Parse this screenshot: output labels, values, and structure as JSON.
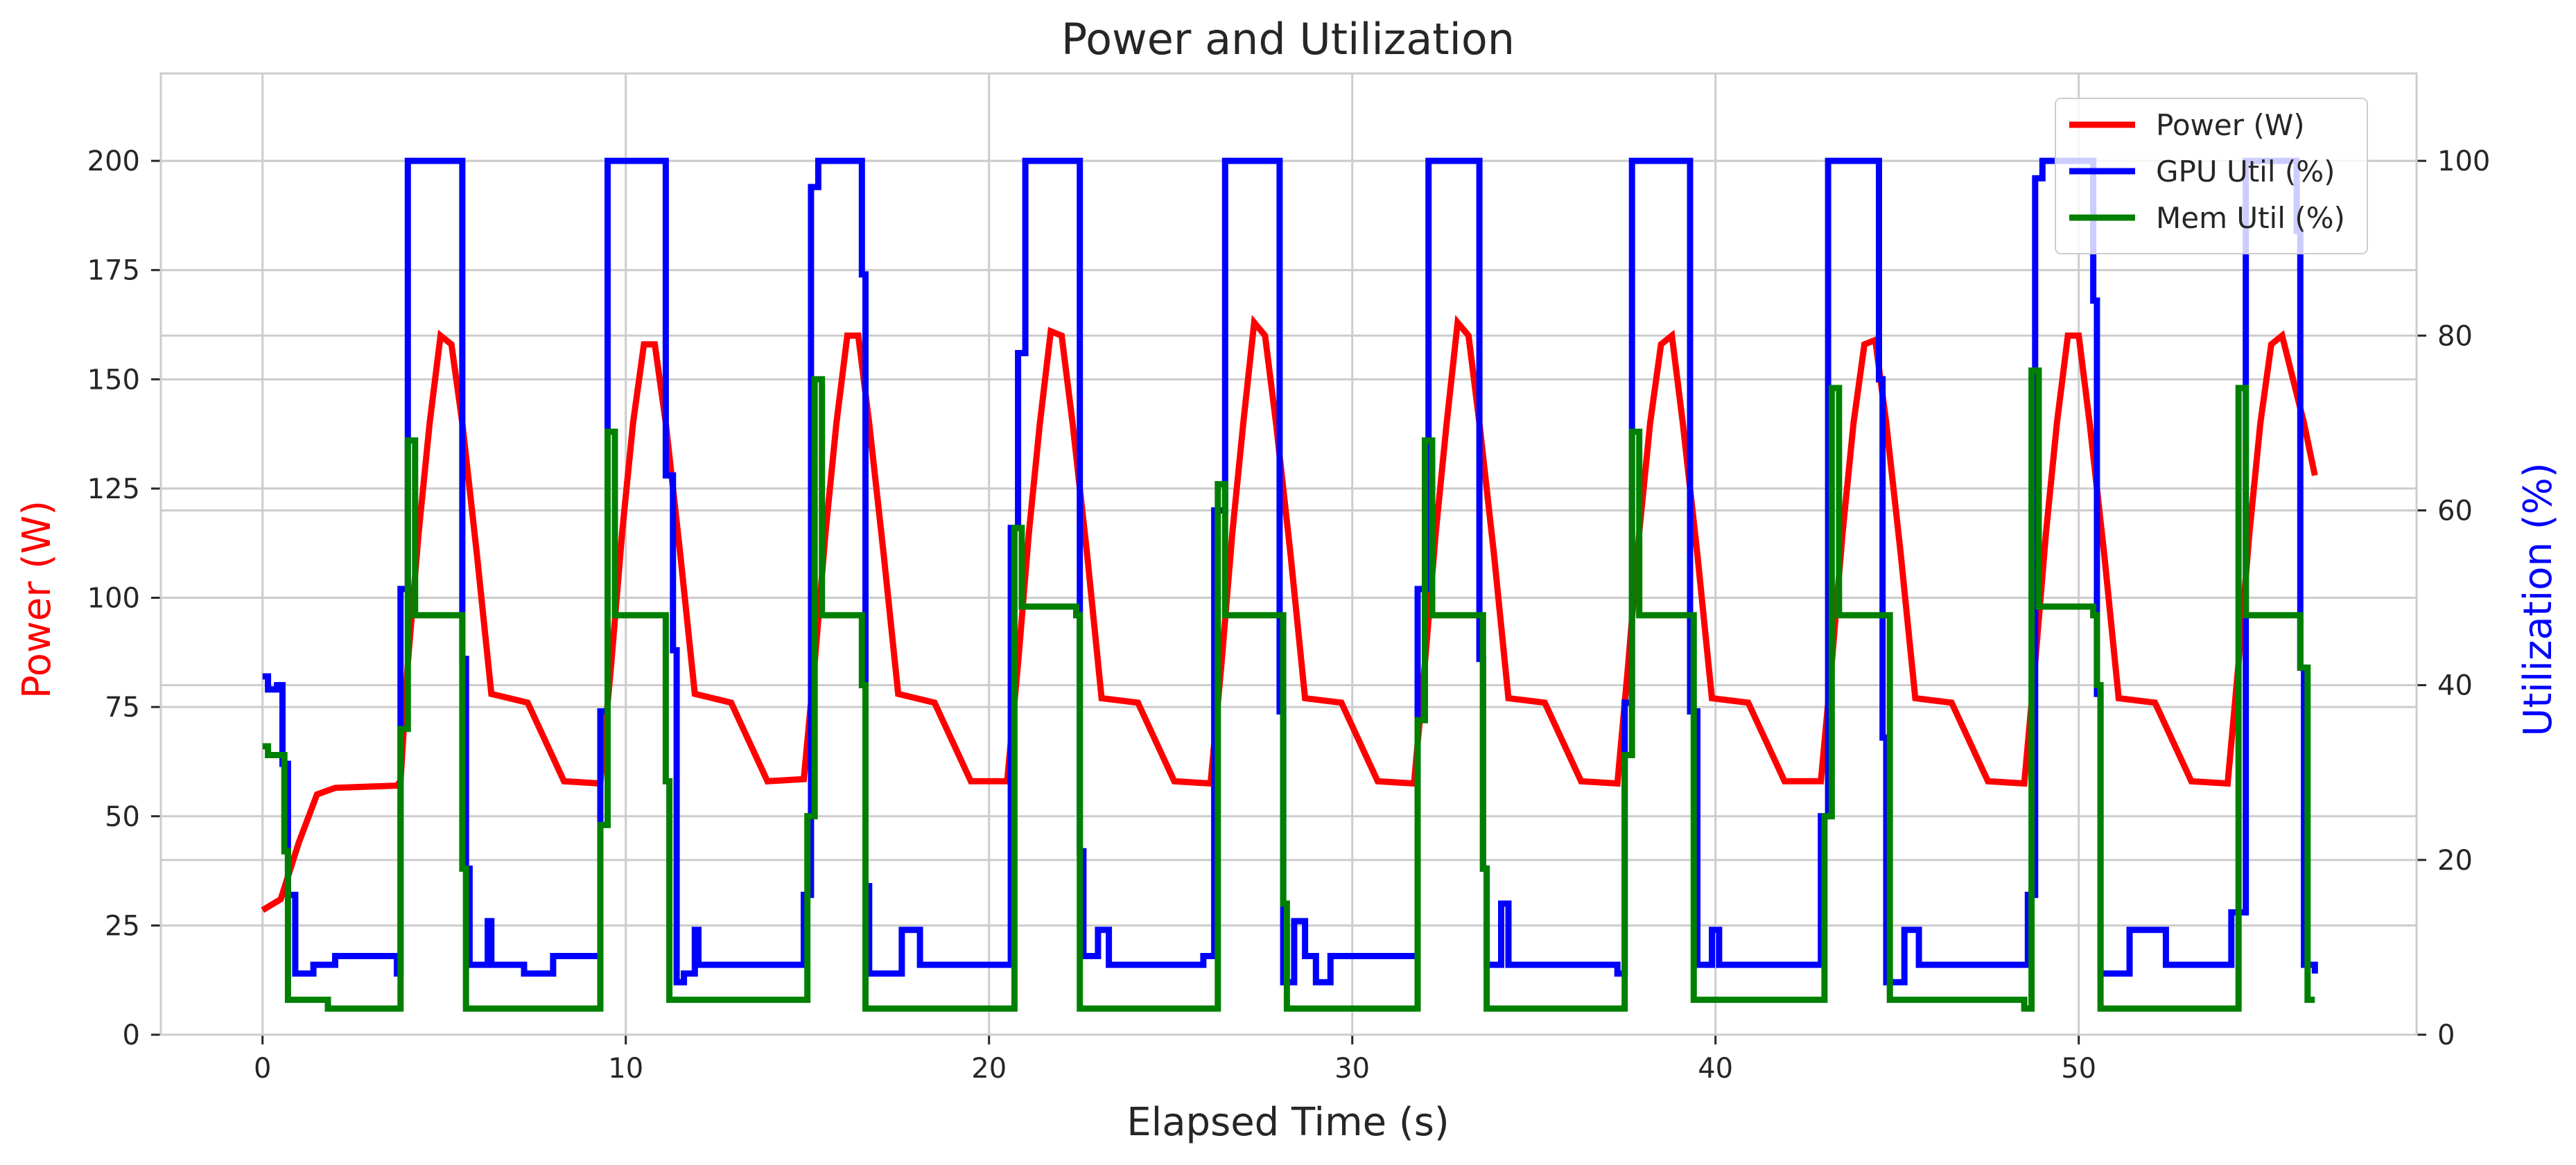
{
  "colors": {
    "power": "#ff0000",
    "gpu_util": "#0000ff",
    "mem_util": "#008000",
    "left_axis_label": "#ff0000",
    "right_axis_label": "#0000ff",
    "grid": "#cccccc",
    "spine": "#cccccc",
    "text": "#262626"
  },
  "chart_data": {
    "type": "line",
    "title": "Power and Utilization",
    "xlabel": "Elapsed Time (s)",
    "ylabel_left": "Power (W)",
    "ylabel_right": "Utilization (%)",
    "xlim": [
      -2.8,
      59.3
    ],
    "ylim_left": [
      0,
      220
    ],
    "ylim_right": [
      0,
      110
    ],
    "xticks": [
      0,
      10,
      20,
      30,
      40,
      50
    ],
    "xtick_labels": [
      "0",
      "10",
      "20",
      "30",
      "40",
      "50"
    ],
    "yticks_left": [
      0,
      25,
      50,
      75,
      100,
      125,
      150,
      175,
      200
    ],
    "ytick_labels_left": [
      "0",
      "25",
      "50",
      "75",
      "100",
      "125",
      "150",
      "175",
      "200"
    ],
    "yticks_right": [
      0,
      20,
      40,
      60,
      80,
      100
    ],
    "ytick_labels_right": [
      "0",
      "20",
      "40",
      "60",
      "80",
      "100"
    ],
    "grid": true,
    "legend_position": "top-right",
    "cycle_starts": [
      3.8,
      9.4,
      15.0,
      20.6,
      26.2,
      31.8,
      37.4,
      43.0,
      48.6,
      54.2
    ],
    "series": [
      {
        "name": "Power (W)",
        "axis": "left",
        "points": [
          [
            0,
            28.5
          ],
          [
            0.5,
            31
          ],
          [
            1.0,
            44
          ],
          [
            1.5,
            55
          ],
          [
            2.0,
            56.5
          ],
          [
            3.7,
            57
          ],
          [
            3.8,
            58
          ],
          [
            4.0,
            85
          ],
          [
            4.3,
            115
          ],
          [
            4.6,
            140
          ],
          [
            4.9,
            160
          ],
          [
            5.2,
            158
          ],
          [
            5.5,
            140
          ],
          [
            5.9,
            110
          ],
          [
            6.3,
            78
          ],
          [
            7.3,
            76
          ],
          [
            8.3,
            58
          ],
          [
            9.3,
            57.5
          ],
          [
            9.6,
            85
          ],
          [
            9.9,
            115
          ],
          [
            10.2,
            140
          ],
          [
            10.5,
            158
          ],
          [
            10.8,
            158
          ],
          [
            11.1,
            140
          ],
          [
            11.5,
            110
          ],
          [
            11.9,
            78
          ],
          [
            12.9,
            76
          ],
          [
            13.9,
            58
          ],
          [
            14.9,
            58.5
          ],
          [
            15.2,
            85
          ],
          [
            15.5,
            115
          ],
          [
            15.8,
            140
          ],
          [
            16.1,
            160
          ],
          [
            16.4,
            160
          ],
          [
            16.7,
            140
          ],
          [
            17.1,
            110
          ],
          [
            17.5,
            78
          ],
          [
            18.5,
            76
          ],
          [
            19.5,
            58
          ],
          [
            20.5,
            58
          ],
          [
            20.8,
            85
          ],
          [
            21.1,
            115
          ],
          [
            21.4,
            140
          ],
          [
            21.7,
            161
          ],
          [
            22.0,
            160
          ],
          [
            22.3,
            140
          ],
          [
            22.7,
            110
          ],
          [
            23.1,
            77
          ],
          [
            24.1,
            76
          ],
          [
            25.1,
            58
          ],
          [
            26.1,
            57.5
          ],
          [
            26.4,
            85
          ],
          [
            26.7,
            115
          ],
          [
            27.0,
            140
          ],
          [
            27.3,
            163
          ],
          [
            27.6,
            160
          ],
          [
            27.9,
            140
          ],
          [
            28.3,
            110
          ],
          [
            28.7,
            77
          ],
          [
            29.7,
            76
          ],
          [
            30.7,
            58
          ],
          [
            31.7,
            57.5
          ],
          [
            32.0,
            85
          ],
          [
            32.3,
            115
          ],
          [
            32.6,
            140
          ],
          [
            32.9,
            163
          ],
          [
            33.2,
            160
          ],
          [
            33.5,
            140
          ],
          [
            33.9,
            110
          ],
          [
            34.3,
            77
          ],
          [
            35.3,
            76
          ],
          [
            36.3,
            58
          ],
          [
            37.3,
            57.5
          ],
          [
            37.6,
            85
          ],
          [
            37.9,
            115
          ],
          [
            38.2,
            140
          ],
          [
            38.5,
            158
          ],
          [
            38.8,
            160
          ],
          [
            39.1,
            140
          ],
          [
            39.5,
            110
          ],
          [
            39.9,
            77
          ],
          [
            40.9,
            76
          ],
          [
            41.9,
            58
          ],
          [
            42.9,
            58
          ],
          [
            43.2,
            85
          ],
          [
            43.5,
            115
          ],
          [
            43.8,
            140
          ],
          [
            44.1,
            158
          ],
          [
            44.4,
            159
          ],
          [
            44.7,
            140
          ],
          [
            45.1,
            110
          ],
          [
            45.5,
            77
          ],
          [
            46.5,
            76
          ],
          [
            47.5,
            58
          ],
          [
            48.5,
            57.5
          ],
          [
            48.8,
            85
          ],
          [
            49.1,
            115
          ],
          [
            49.4,
            140
          ],
          [
            49.7,
            160
          ],
          [
            50.0,
            160
          ],
          [
            50.3,
            140
          ],
          [
            50.7,
            110
          ],
          [
            51.1,
            77
          ],
          [
            52.1,
            76
          ],
          [
            53.1,
            58
          ],
          [
            54.1,
            57.5
          ],
          [
            54.4,
            85
          ],
          [
            54.7,
            115
          ],
          [
            55.0,
            140
          ],
          [
            55.3,
            158
          ],
          [
            55.6,
            160
          ],
          [
            55.9,
            150
          ],
          [
            56.2,
            140
          ],
          [
            56.5,
            128
          ]
        ]
      },
      {
        "name": "GPU Util (%)",
        "axis": "right",
        "points": [
          [
            0,
            41
          ],
          [
            0.15,
            39.5
          ],
          [
            0.4,
            40
          ],
          [
            0.55,
            31
          ],
          [
            0.7,
            16
          ],
          [
            0.9,
            7
          ],
          [
            1.1,
            7
          ],
          [
            1.4,
            8
          ],
          [
            2.0,
            9
          ],
          [
            3.7,
            7
          ],
          [
            3.8,
            51
          ],
          [
            4.0,
            100
          ],
          [
            5.4,
            100
          ],
          [
            5.5,
            43
          ],
          [
            5.6,
            19
          ],
          [
            5.7,
            8
          ],
          [
            6.2,
            13
          ],
          [
            6.3,
            8
          ],
          [
            7.2,
            7
          ],
          [
            8.0,
            9
          ],
          [
            9.2,
            9
          ],
          [
            9.3,
            37
          ],
          [
            9.5,
            100
          ],
          [
            11.0,
            100
          ],
          [
            11.1,
            64
          ],
          [
            11.3,
            44
          ],
          [
            11.4,
            6
          ],
          [
            11.6,
            7
          ],
          [
            11.9,
            12
          ],
          [
            12.0,
            8
          ],
          [
            14.4,
            8
          ],
          [
            14.9,
            16
          ],
          [
            15.1,
            97
          ],
          [
            15.3,
            100
          ],
          [
            16.4,
            100
          ],
          [
            16.5,
            87
          ],
          [
            16.6,
            17
          ],
          [
            16.7,
            7
          ],
          [
            17.6,
            12
          ],
          [
            18.1,
            8
          ],
          [
            20.2,
            8
          ],
          [
            20.6,
            58
          ],
          [
            20.8,
            78
          ],
          [
            21.0,
            100
          ],
          [
            22.4,
            100
          ],
          [
            22.5,
            21
          ],
          [
            22.6,
            9
          ],
          [
            23.0,
            12
          ],
          [
            23.3,
            8
          ],
          [
            25.9,
            9
          ],
          [
            26.2,
            60
          ],
          [
            26.5,
            100
          ],
          [
            27.9,
            100
          ],
          [
            28.0,
            37
          ],
          [
            28.1,
            6
          ],
          [
            28.4,
            13
          ],
          [
            28.7,
            9
          ],
          [
            29.0,
            6
          ],
          [
            29.4,
            9
          ],
          [
            31.6,
            9
          ],
          [
            31.8,
            51
          ],
          [
            32.1,
            100
          ],
          [
            33.4,
            100
          ],
          [
            33.5,
            43
          ],
          [
            33.6,
            19
          ],
          [
            33.7,
            8
          ],
          [
            34.1,
            15
          ],
          [
            34.3,
            8
          ],
          [
            36.4,
            8
          ],
          [
            37.3,
            7
          ],
          [
            37.5,
            38
          ],
          [
            37.7,
            100
          ],
          [
            39.2,
            100
          ],
          [
            39.3,
            37
          ],
          [
            39.5,
            8
          ],
          [
            39.9,
            12
          ],
          [
            40.1,
            8
          ],
          [
            42.6,
            8
          ],
          [
            42.9,
            25
          ],
          [
            43.1,
            100
          ],
          [
            44.4,
            100
          ],
          [
            44.5,
            75
          ],
          [
            44.6,
            34
          ],
          [
            44.7,
            6
          ],
          [
            45.2,
            12
          ],
          [
            45.6,
            8
          ],
          [
            48.2,
            8
          ],
          [
            48.6,
            16
          ],
          [
            48.8,
            98
          ],
          [
            49.0,
            100
          ],
          [
            50.2,
            100
          ],
          [
            50.4,
            84
          ],
          [
            50.5,
            39
          ],
          [
            50.6,
            7
          ],
          [
            51.4,
            12
          ],
          [
            52.4,
            8
          ],
          [
            53.8,
            8
          ],
          [
            54.2,
            14
          ],
          [
            54.6,
            100
          ],
          [
            55.9,
            100
          ],
          [
            56.0,
            92
          ],
          [
            56.1,
            42
          ],
          [
            56.2,
            8
          ],
          [
            56.5,
            7
          ]
        ]
      },
      {
        "name": "Mem Util (%)",
        "axis": "right",
        "points": [
          [
            0,
            33
          ],
          [
            0.15,
            32
          ],
          [
            0.5,
            32
          ],
          [
            0.6,
            21
          ],
          [
            0.7,
            4
          ],
          [
            1.7,
            4
          ],
          [
            1.8,
            3
          ],
          [
            3.7,
            3
          ],
          [
            3.8,
            35
          ],
          [
            4.0,
            68
          ],
          [
            4.2,
            48
          ],
          [
            5.4,
            48
          ],
          [
            5.5,
            19
          ],
          [
            5.6,
            3
          ],
          [
            9.2,
            3
          ],
          [
            9.3,
            24
          ],
          [
            9.5,
            69
          ],
          [
            9.7,
            48
          ],
          [
            11.0,
            48
          ],
          [
            11.1,
            29
          ],
          [
            11.2,
            4
          ],
          [
            14.9,
            4
          ],
          [
            15.0,
            25
          ],
          [
            15.2,
            75
          ],
          [
            15.4,
            48
          ],
          [
            16.4,
            48
          ],
          [
            16.5,
            40
          ],
          [
            16.6,
            3
          ],
          [
            20.5,
            3
          ],
          [
            20.7,
            58
          ],
          [
            20.9,
            49
          ],
          [
            22.4,
            48
          ],
          [
            22.5,
            3
          ],
          [
            26.1,
            3
          ],
          [
            26.3,
            63
          ],
          [
            26.5,
            48
          ],
          [
            28.0,
            48
          ],
          [
            28.1,
            15
          ],
          [
            28.2,
            3
          ],
          [
            31.7,
            3
          ],
          [
            31.8,
            36
          ],
          [
            32.0,
            68
          ],
          [
            32.2,
            48
          ],
          [
            33.5,
            48
          ],
          [
            33.6,
            19
          ],
          [
            33.7,
            3
          ],
          [
            37.4,
            3
          ],
          [
            37.5,
            32
          ],
          [
            37.7,
            69
          ],
          [
            37.9,
            48
          ],
          [
            39.3,
            48
          ],
          [
            39.4,
            4
          ],
          [
            42.9,
            4
          ],
          [
            43.0,
            25
          ],
          [
            43.2,
            74
          ],
          [
            43.4,
            48
          ],
          [
            44.7,
            48
          ],
          [
            44.8,
            4
          ],
          [
            48.5,
            3
          ],
          [
            48.7,
            76
          ],
          [
            48.9,
            49
          ],
          [
            50.4,
            48
          ],
          [
            50.5,
            40
          ],
          [
            50.6,
            3
          ],
          [
            54.2,
            3
          ],
          [
            54.4,
            74
          ],
          [
            54.6,
            48
          ],
          [
            56.0,
            48
          ],
          [
            56.1,
            42
          ],
          [
            56.3,
            4
          ],
          [
            56.5,
            4
          ]
        ]
      }
    ]
  }
}
